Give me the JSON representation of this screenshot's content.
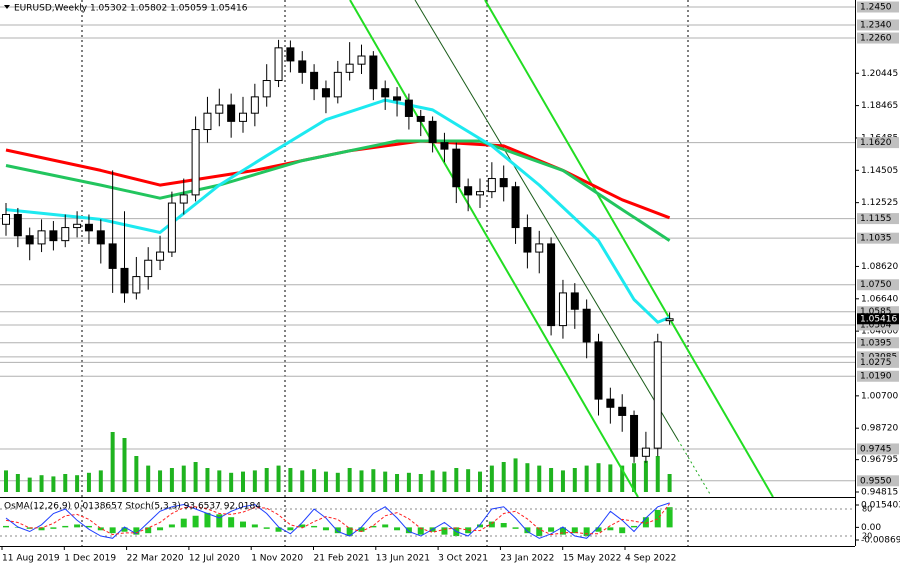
{
  "chart_data": {
    "type": "candlestick",
    "title": "EURUSD,Weekly  1.05302 1.05802 1.05059 1.05416",
    "open": [
      1.112,
      1.118,
      1.105,
      1.1,
      1.108,
      1.102,
      1.11,
      1.112,
      1.108,
      1.1,
      1.085,
      1.07,
      1.08,
      1.09,
      1.095,
      1.125,
      1.13,
      1.17,
      1.18,
      1.185,
      1.175,
      1.18,
      1.19,
      1.2,
      1.22,
      1.212,
      1.205,
      1.195,
      1.19,
      1.205,
      1.21,
      1.215,
      1.195,
      1.19,
      1.188,
      1.178,
      1.175,
      1.162,
      1.158,
      1.135,
      1.13,
      1.132,
      1.14,
      1.135,
      1.11,
      1.095,
      1.1,
      1.05,
      1.07,
      1.06,
      1.04,
      1.005,
      1.0,
      0.995,
      0.97,
      0.975,
      1.05302
    ],
    "high": [
      1.125,
      1.122,
      1.11,
      1.115,
      1.114,
      1.118,
      1.12,
      1.118,
      1.115,
      1.145,
      1.12,
      1.092,
      1.098,
      1.105,
      1.132,
      1.14,
      1.178,
      1.19,
      1.195,
      1.192,
      1.19,
      1.198,
      1.21,
      1.2249,
      1.2245,
      1.218,
      1.21,
      1.2,
      1.212,
      1.2235,
      1.222,
      1.218,
      1.2,
      1.196,
      1.192,
      1.182,
      1.178,
      1.168,
      1.162,
      1.14,
      1.14,
      1.15,
      1.148,
      1.138,
      1.118,
      1.108,
      1.104,
      1.078,
      1.076,
      1.066,
      1.045,
      1.012,
      1.008,
      0.998,
      0.985,
      1.045,
      1.05802
    ],
    "low": [
      1.105,
      1.098,
      1.09,
      1.095,
      1.096,
      1.098,
      1.104,
      1.1,
      1.088,
      1.07,
      1.064,
      1.066,
      1.072,
      1.084,
      1.092,
      1.118,
      1.126,
      1.162,
      1.172,
      1.165,
      1.168,
      1.172,
      1.184,
      1.196,
      1.205,
      1.198,
      1.188,
      1.18,
      1.186,
      1.2,
      1.204,
      1.188,
      1.182,
      1.178,
      1.17,
      1.166,
      1.156,
      1.15,
      1.125,
      1.12,
      1.122,
      1.128,
      1.126,
      1.1,
      1.085,
      1.082,
      1.044,
      1.042,
      1.048,
      1.03,
      0.995,
      0.99,
      0.985,
      0.966,
      0.966,
      0.97,
      1.05059
    ],
    "close": [
      1.118,
      1.105,
      1.1,
      1.108,
      1.102,
      1.11,
      1.112,
      1.108,
      1.1,
      1.085,
      1.07,
      1.08,
      1.09,
      1.095,
      1.125,
      1.13,
      1.17,
      1.18,
      1.185,
      1.175,
      1.18,
      1.19,
      1.2,
      1.22,
      1.212,
      1.205,
      1.195,
      1.19,
      1.205,
      1.21,
      1.215,
      1.195,
      1.19,
      1.188,
      1.178,
      1.175,
      1.162,
      1.158,
      1.135,
      1.13,
      1.132,
      1.14,
      1.135,
      1.11,
      1.095,
      1.1,
      1.05,
      1.07,
      1.06,
      1.04,
      1.005,
      1.0,
      0.995,
      0.97,
      0.975,
      1.04,
      1.05416
    ],
    "volume": [
      18,
      15,
      12,
      14,
      13,
      15,
      14,
      16,
      18,
      50,
      45,
      30,
      22,
      18,
      20,
      22,
      25,
      20,
      18,
      16,
      17,
      18,
      20,
      22,
      20,
      18,
      19,
      17,
      16,
      20,
      18,
      19,
      17,
      15,
      16,
      15,
      18,
      17,
      20,
      19,
      17,
      22,
      25,
      28,
      24,
      22,
      20,
      18,
      20,
      22,
      24,
      23,
      22,
      24,
      26,
      30,
      15
    ],
    "volume_color": "#1fb31f",
    "moving_averages": [
      {
        "color": "#ff0000",
        "width": 3,
        "x": [
          0,
          8,
          13,
          21,
          29,
          35,
          42,
          47,
          52,
          56
        ],
        "values": [
          1.1575,
          1.145,
          1.136,
          1.145,
          1.157,
          1.163,
          1.16,
          1.145,
          1.127,
          1.116
        ]
      },
      {
        "color": "#22c55e",
        "width": 3,
        "x": [
          0,
          8,
          13,
          18,
          25,
          33,
          40,
          47,
          52,
          56
        ],
        "values": [
          1.148,
          1.136,
          1.128,
          1.136,
          1.151,
          1.163,
          1.163,
          1.145,
          1.121,
          1.102
        ]
      },
      {
        "color": "#1de9f0",
        "width": 3,
        "x": [
          0,
          8,
          13,
          18,
          22,
          27,
          32,
          36,
          41,
          45,
          50,
          53,
          55,
          56
        ],
        "values": [
          1.121,
          1.115,
          1.107,
          1.136,
          1.154,
          1.176,
          1.188,
          1.182,
          1.16,
          1.136,
          1.102,
          1.066,
          1.052,
          1.055
        ]
      }
    ],
    "ylim": [
      0.94815,
      1.245
    ],
    "yticks": [
      1.20445,
      1.18465,
      1.16485,
      1.14505,
      1.12525,
      {
        "value": 1.0862,
        "label": "1.08620"
      },
      {
        "value": 1.0664,
        "label": "1.06640"
      },
      {
        "value": 1.0466,
        "label": "1.04660"
      },
      {
        "value": 1.007,
        "label": "1.00700"
      },
      {
        "value": 0.9872,
        "label": "0.98720"
      },
      0.96795,
      0.94815
    ],
    "levels": [
      {
        "value": 1.245,
        "label": "1.2450"
      },
      {
        "value": 1.234,
        "label": "1.2340"
      },
      {
        "value": 1.226,
        "label": "1.2260"
      },
      {
        "value": 1.162,
        "label": "1.1620"
      },
      {
        "value": 1.1155,
        "label": "1.1155"
      },
      {
        "value": 1.1035,
        "label": "1.1035"
      },
      {
        "value": 1.075,
        "label": "1.0750"
      },
      {
        "value": 1.0585,
        "label": "1.0585"
      },
      {
        "value": 1.0504,
        "label": "1.0504"
      },
      {
        "value": 1.0395,
        "label": "1.0395"
      },
      1.03085,
      {
        "value": 1.0275,
        "label": "1.0275"
      },
      {
        "value": 1.019,
        "label": "1.0190"
      },
      {
        "value": 0.9745,
        "label": "0.9745"
      },
      {
        "value": 0.955,
        "label": "0.9550"
      }
    ],
    "current_price": 1.05416,
    "x_labels": [
      "11 Aug 2019",
      "1 Dec 2019",
      "22 Mar 2020",
      "12 Jul 2020",
      "1 Nov 2020",
      "21 Feb 2021",
      "13 Jun 2021",
      "3 Oct 2021",
      "23 Jan 2022",
      "15 May 2022",
      "4 Sep 2022"
    ],
    "indicator_label": "OsMA(12,26,9) 0.0138657  Stoch(5,3,3) 93.6537 92.0184",
    "osma": {
      "color": "#22c522",
      "values": [
        0.001,
        0,
        -0.001,
        -0.002,
        -0.001,
        0.001,
        0.002,
        0.001,
        -0.002,
        -0.004,
        -0.003,
        -0.005,
        -0.004,
        -0.002,
        0.002,
        0.006,
        0.008,
        0.01,
        0.009,
        0.007,
        0.004,
        0.002,
        -0.001,
        -0.003,
        -0.002,
        0.002,
        0.001,
        -0.002,
        -0.004,
        -0.006,
        -0.003,
        0.001,
        0.002,
        -0.002,
        -0.004,
        -0.005,
        -0.003,
        -0.005,
        -0.006,
        -0.004,
        0.002,
        0.004,
        0.003,
        -0.001,
        -0.004,
        -0.006,
        -0.003,
        -0.005,
        -0.004,
        -0.006,
        -0.003,
        -0.002,
        -0.004,
        0.001,
        0.007,
        0.012,
        0.0138657
      ],
      "ylim": [
        -0.008692,
        0.0154036
      ],
      "yticks": [
        0.0154036,
        {
          "value": 0,
          "label": "0.00"
        },
        -0.008692
      ]
    },
    "stoch": {
      "ylim": [
        0,
        100
      ],
      "yticks": [
        80,
        20
      ],
      "main": {
        "color": "#2040ff",
        "values": [
          60,
          40,
          30,
          45,
          70,
          80,
          55,
          35,
          20,
          15,
          40,
          25,
          50,
          75,
          85,
          90,
          80,
          70,
          60,
          75,
          85,
          90,
          70,
          40,
          25,
          50,
          80,
          60,
          30,
          20,
          40,
          70,
          85,
          60,
          30,
          20,
          35,
          50,
          30,
          20,
          45,
          80,
          85,
          60,
          30,
          15,
          25,
          40,
          20,
          15,
          40,
          75,
          55,
          30,
          60,
          85,
          93.6537
        ]
      },
      "signal": {
        "color": "#ff2020",
        "values": [
          55,
          50,
          38,
          38,
          48,
          65,
          68,
          57,
          37,
          23,
          27,
          27,
          38,
          50,
          70,
          83,
          85,
          80,
          70,
          68,
          73,
          83,
          82,
          67,
          45,
          38,
          52,
          63,
          57,
          37,
          30,
          43,
          65,
          72,
          58,
          37,
          28,
          35,
          38,
          33,
          32,
          48,
          70,
          75,
          58,
          35,
          23,
          27,
          28,
          25,
          25,
          43,
          57,
          53,
          48,
          58,
          92.0184
        ]
      }
    }
  }
}
